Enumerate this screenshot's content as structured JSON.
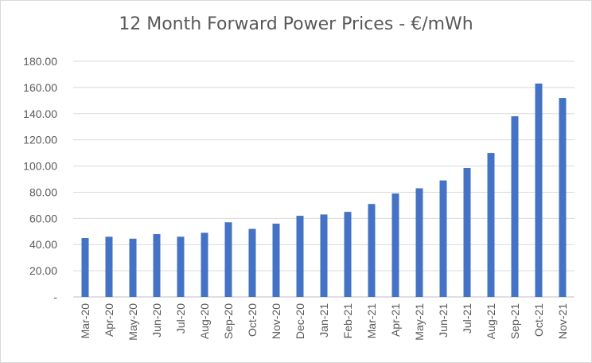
{
  "chart_data": {
    "type": "bar",
    "title": "12 Month Forward Power Prices - €/mWh",
    "xlabel": "",
    "ylabel": "",
    "ylim": [
      0,
      180
    ],
    "y_ticks": [
      "-",
      "20.00",
      "40.00",
      "60.00",
      "80.00",
      "100.00",
      "120.00",
      "140.00",
      "160.00",
      "180.00"
    ],
    "grid": true,
    "legend": "none",
    "bar_color": "#4472C4",
    "categories": [
      "Mar-20",
      "Apr-20",
      "May-20",
      "Jun-20",
      "Jul-20",
      "Aug-20",
      "Sep-20",
      "Oct-20",
      "Nov-20",
      "Dec-20",
      "Jan-21",
      "Feb-21",
      "Mar-21",
      "Apr-21",
      "May-21",
      "Jun-21",
      "Jul-21",
      "Aug-21",
      "Sep-21",
      "Oct-21",
      "Nov-21"
    ],
    "values": [
      45,
      46,
      44.5,
      48,
      46,
      49,
      57,
      52,
      56,
      62,
      63,
      65,
      71,
      79,
      83,
      89,
      98.5,
      110,
      138,
      163,
      152
    ]
  }
}
